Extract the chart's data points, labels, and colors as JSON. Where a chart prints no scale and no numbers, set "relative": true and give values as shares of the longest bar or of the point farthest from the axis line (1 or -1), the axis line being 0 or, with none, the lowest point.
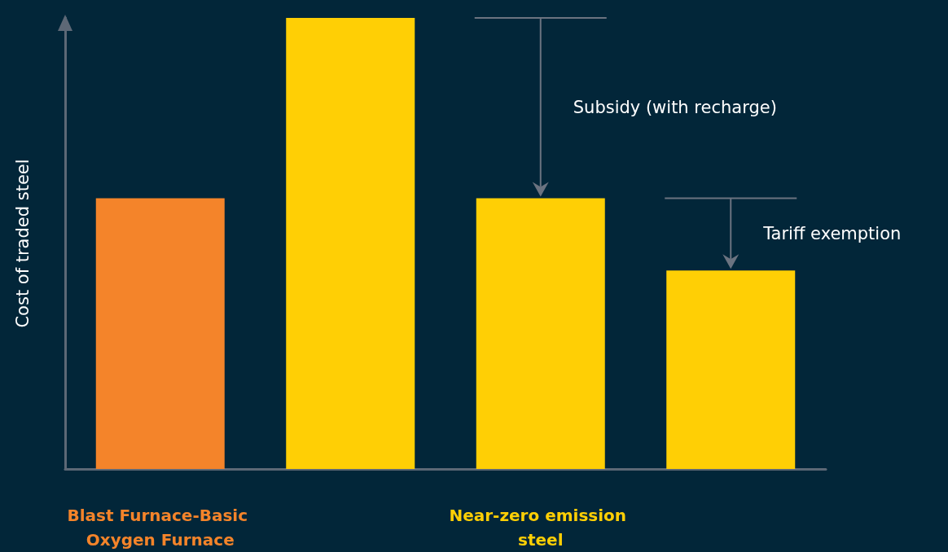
{
  "chart_data": {
    "type": "bar",
    "relative": true,
    "ylabel": "Cost of traded steel",
    "categories": [
      "Blast Furnace-Basic Oxygen Furnace",
      null,
      "Near-zero emission steel",
      null
    ],
    "values": [
      0.6,
      1,
      0.6,
      0.44
    ],
    "colors": [
      "#f4842a",
      "#ffcf05",
      "#ffcf05",
      "#ffcf05"
    ],
    "annotations": [
      "Subsidy (with recharge)",
      "Tariff exemption"
    ],
    "grid": false
  }
}
